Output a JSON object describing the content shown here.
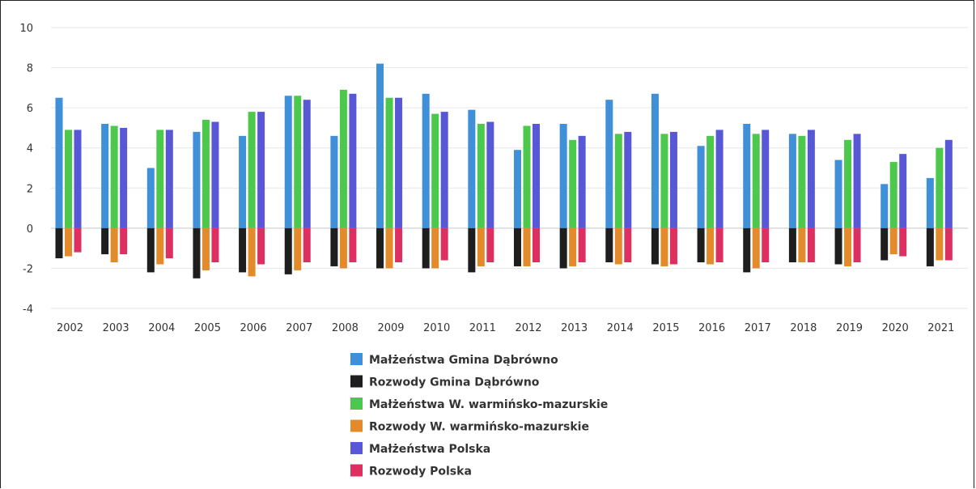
{
  "chart_data": {
    "type": "bar",
    "categories": [
      "2002",
      "2003",
      "2004",
      "2005",
      "2006",
      "2007",
      "2008",
      "2009",
      "2010",
      "2011",
      "2012",
      "2013",
      "2014",
      "2015",
      "2016",
      "2017",
      "2018",
      "2019",
      "2020",
      "2021"
    ],
    "ylim": [
      -4,
      10
    ],
    "yticks": [
      10,
      8,
      6,
      4,
      2,
      0,
      -2,
      -4
    ],
    "grid": true,
    "legend_position": "bottom",
    "series": [
      {
        "name": "Małżeństwa Gmina Dąbrówno",
        "color": "#3f8fd9",
        "values": [
          6.5,
          5.2,
          3.0,
          4.8,
          4.6,
          6.6,
          4.6,
          8.2,
          6.7,
          5.9,
          3.9,
          5.2,
          6.4,
          6.7,
          4.1,
          5.2,
          4.7,
          3.4,
          2.2,
          2.5
        ]
      },
      {
        "name": "Rozwody Gmina Dąbrówno",
        "color": "#1e1e1e",
        "values": [
          -1.5,
          -1.3,
          -2.2,
          -2.5,
          -2.2,
          -2.3,
          -1.9,
          -2.0,
          -2.0,
          -2.2,
          -1.9,
          -2.0,
          -1.7,
          -1.8,
          -1.7,
          -2.2,
          -1.7,
          -1.8,
          -1.6,
          -1.9
        ]
      },
      {
        "name": "Małżeństwa W. warmińsko-mazurskie",
        "color": "#4cc94c",
        "values": [
          4.9,
          5.1,
          4.9,
          5.4,
          5.8,
          6.6,
          6.9,
          6.5,
          5.7,
          5.2,
          5.1,
          4.4,
          4.7,
          4.7,
          4.6,
          4.7,
          4.6,
          4.4,
          3.3,
          4.0
        ]
      },
      {
        "name": "Rozwody W. warmińsko-mazurskie",
        "color": "#e38a2b",
        "values": [
          -1.4,
          -1.7,
          -1.8,
          -2.1,
          -2.4,
          -2.1,
          -2.0,
          -2.0,
          -2.0,
          -1.9,
          -1.9,
          -1.9,
          -1.8,
          -1.9,
          -1.8,
          -2.0,
          -1.7,
          -1.9,
          -1.3,
          -1.6
        ]
      },
      {
        "name": "Małżeństwa Polska",
        "color": "#5858d6",
        "values": [
          4.9,
          5.0,
          4.9,
          5.3,
          5.8,
          6.4,
          6.7,
          6.5,
          5.8,
          5.3,
          5.2,
          4.6,
          4.8,
          4.8,
          4.9,
          4.9,
          4.9,
          4.7,
          3.7,
          4.4
        ]
      },
      {
        "name": "Rozwody Polska",
        "color": "#dd3060",
        "values": [
          -1.2,
          -1.3,
          -1.5,
          -1.7,
          -1.8,
          -1.7,
          -1.7,
          -1.7,
          -1.6,
          -1.7,
          -1.7,
          -1.7,
          -1.7,
          -1.8,
          -1.7,
          -1.7,
          -1.7,
          -1.7,
          -1.4,
          -1.6
        ]
      }
    ]
  }
}
